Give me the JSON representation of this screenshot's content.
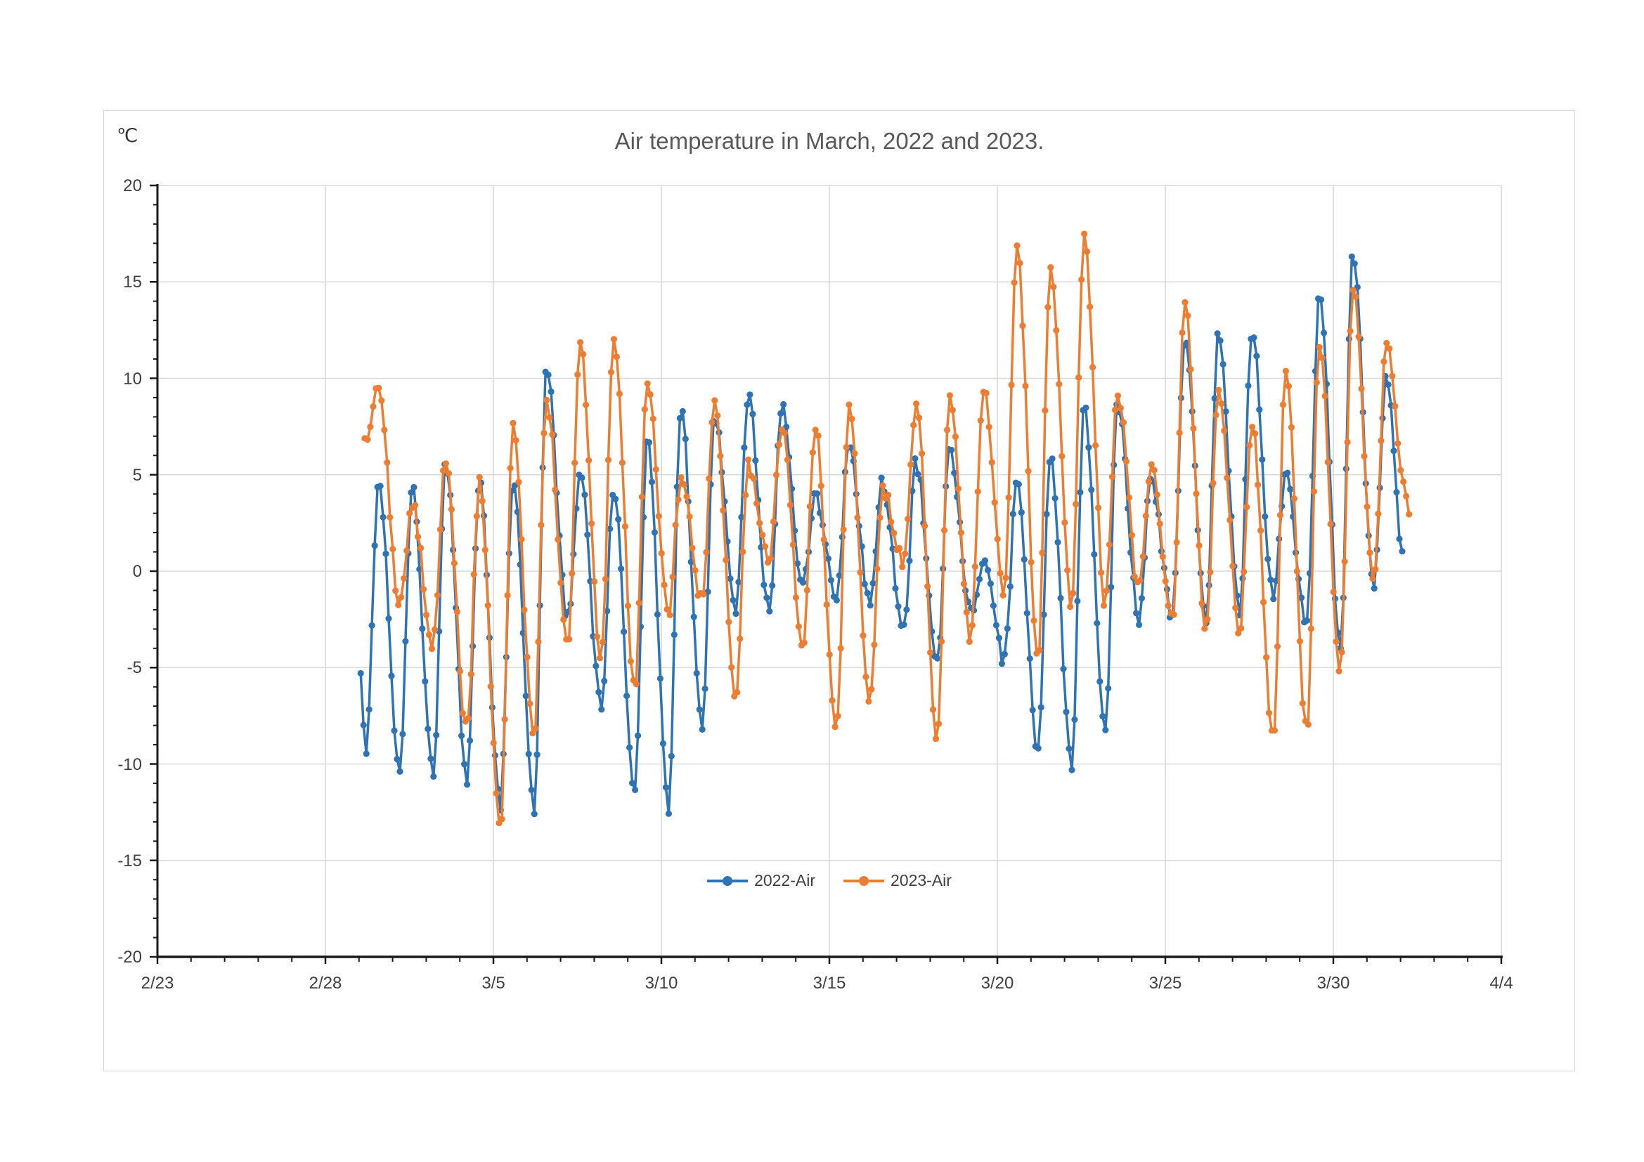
{
  "chart_data": {
    "type": "line",
    "title": "Air temperature in March, 2022 and 2023.",
    "unit_label": "℃",
    "ylabel": "",
    "xlabel": "",
    "ylim": [
      -20,
      20
    ],
    "y_tick_step": 5,
    "y_tick_labels": [
      "20",
      "15",
      "10",
      "5",
      "0",
      "-5",
      "-10",
      "-15",
      "-20"
    ],
    "x_tick_labels": [
      "2/23",
      "2/28",
      "3/5",
      "3/10",
      "3/15",
      "3/20",
      "3/25",
      "3/30",
      "4/4"
    ],
    "x_axis_total_days": 40,
    "x_major_tick_every_days": 5,
    "x_minor_tick_every_days": 1,
    "grid": true,
    "legend_position": "bottom-center-inside",
    "dates": [
      "3/1",
      "3/2",
      "3/3",
      "3/4",
      "3/5",
      "3/6",
      "3/7",
      "3/8",
      "3/9",
      "3/10",
      "3/11",
      "3/12",
      "3/13",
      "3/14",
      "3/15",
      "3/16",
      "3/17",
      "3/18",
      "3/19",
      "3/20",
      "3/21",
      "3/22",
      "3/23",
      "3/24",
      "3/25",
      "3/26",
      "3/27",
      "3/28",
      "3/29",
      "3/30",
      "3/31"
    ],
    "series": [
      {
        "name": "2022-Air",
        "color": "#2E74B5",
        "first_point": {
          "day_frac": 0.05,
          "value": -5.4
        },
        "daily_min": [
          -9.5,
          -10.2,
          -10.5,
          -10.8,
          -12.2,
          -12.3,
          -2.5,
          -7.0,
          -11.2,
          -12.2,
          -8.0,
          -2.0,
          -2.0,
          -0.8,
          -1.4,
          -1.6,
          -3.0,
          -4.7,
          -2.0,
          -4.6,
          -9.2,
          -10.0,
          -8.2,
          -2.4,
          -2.4,
          -2.5,
          -2.0,
          -1.3,
          -2.9,
          -3.8,
          -0.8
        ],
        "daily_max": [
          4.5,
          4.4,
          5.6,
          4.7,
          4.6,
          10.4,
          5.2,
          4.3,
          7.0,
          8.4,
          8.0,
          9.0,
          8.5,
          4.0,
          6.5,
          4.6,
          5.6,
          6.4,
          0.5,
          4.7,
          5.9,
          8.4,
          8.8,
          4.8,
          12.0,
          12.2,
          12.5,
          5.0,
          14.3,
          16.4,
          10.3
        ],
        "last_points": [
          {
            "day_frac": 31.08,
            "value": 0.9
          }
        ]
      },
      {
        "name": "2023-Air",
        "color": "#ED7D31",
        "first_point": {
          "day_frac": 0.17,
          "value": 6.7
        },
        "daily_min": [
          null,
          -1.8,
          -3.7,
          -8.3,
          -13.5,
          -8.6,
          -4.0,
          -4.5,
          -6.0,
          -2.2,
          -1.5,
          -6.4,
          0.5,
          -3.8,
          -8.3,
          -6.8,
          0.5,
          -8.5,
          -3.4,
          -1.0,
          -4.4,
          -1.8,
          -1.7,
          -0.9,
          -2.4,
          -3.0,
          -3.0,
          -8.7,
          -8.3,
          -5.0,
          -0.3
        ],
        "daily_max": [
          9.4,
          3.4,
          5.8,
          4.5,
          7.3,
          9.0,
          11.7,
          12.1,
          9.9,
          4.8,
          8.8,
          5.4,
          7.4,
          7.5,
          8.5,
          4.3,
          8.8,
          9.0,
          9.4,
          16.8,
          16.0,
          17.4,
          9.3,
          5.5,
          13.7,
          9.4,
          7.7,
          10.5,
          11.7,
          14.8,
          11.7
        ],
        "last_points": [
          {
            "day_frac": 31.1,
            "value": 4.9
          },
          {
            "day_frac": 31.28,
            "value": 2.6
          }
        ]
      }
    ]
  },
  "colors": {
    "series_2022": "#2E74B5",
    "series_2023": "#ED7D31",
    "gridline": "#D9D9D9",
    "axis": "#1a1a1a",
    "title_text": "#595959",
    "tick_text": "#404040",
    "frame_border": "#D6D4D4",
    "background": "#FFFFFF"
  }
}
